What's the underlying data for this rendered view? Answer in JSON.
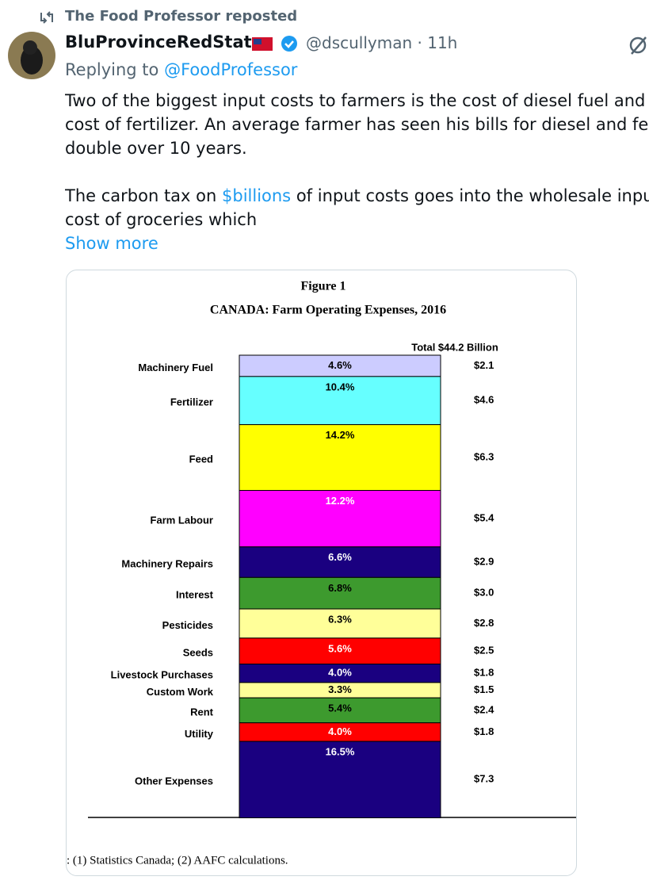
{
  "repost": "The Food Professor reposted",
  "author": {
    "name": "BluProvinceRedState",
    "handle": "@dscullyman",
    "separator": "·",
    "time": "11h"
  },
  "reply": {
    "prefix": "Replying to",
    "to": "@FoodProfessor"
  },
  "text": {
    "lines1": [
      "Two of the biggest input costs to farmers is the cost of diesel fuel and th",
      "cost of fertilizer. An average farmer has seen his bills for diesel and fertili",
      "double over 10 years."
    ],
    "line4_start": "The carbon tax on",
    "line4_link": "$billions",
    "line4_end": "of input costs goes into the wholesale input",
    "line5": "cost of groceries which",
    "show_more": "Show more"
  },
  "chart_data": {
    "type": "stacked_bar",
    "title": "Figure 1",
    "subtitle": "CANADA: Farm Operating Expenses, 2016",
    "total_label": "Total  $44.2 Billion",
    "categories": [
      "Machinery Fuel",
      "Fertilizer",
      "Feed",
      "Farm Labour",
      "Machinery Repairs",
      "Interest",
      "Pesticides",
      "Seeds",
      "Livestock Purchases",
      "Custom Work",
      "Rent",
      "Utility",
      "Other Expenses"
    ],
    "values": [
      4.6,
      10.4,
      14.2,
      12.2,
      6.6,
      6.8,
      6.3,
      5.6,
      4.0,
      3.3,
      5.4,
      4.0,
      16.5
    ],
    "value_labels": [
      "4.6%",
      "10.4%",
      "14.2%",
      "12.2%",
      "6.6%",
      "6.8%",
      "6.3%",
      "5.6%",
      "4.0%",
      "3.3%",
      "5.4%",
      "4.0%",
      "16.5%"
    ],
    "amounts": [
      2.1,
      4.6,
      6.3,
      5.4,
      2.9,
      3.0,
      2.8,
      2.5,
      1.8,
      1.5,
      2.4,
      1.8,
      7.3
    ],
    "amount_labels": [
      "$2.1",
      "$4.6",
      "$6.3",
      "$5.4",
      "$2.9",
      "$3.0",
      "$2.8",
      "$2.5",
      "$1.8",
      "$1.5",
      "$2.4",
      "$1.8",
      "$7.3"
    ],
    "colors": [
      "#ccccff",
      "#66ffff",
      "#ffff00",
      "#ff00ff",
      "#1a0080",
      "#3d9a2e",
      "#ffff99",
      "#ff0000",
      "#1a0080",
      "#ffff99",
      "#3d9a2e",
      "#ff0000",
      "#1a0080"
    ],
    "source": ": (1) Statistics Canada; (2) AAFC calculations."
  }
}
